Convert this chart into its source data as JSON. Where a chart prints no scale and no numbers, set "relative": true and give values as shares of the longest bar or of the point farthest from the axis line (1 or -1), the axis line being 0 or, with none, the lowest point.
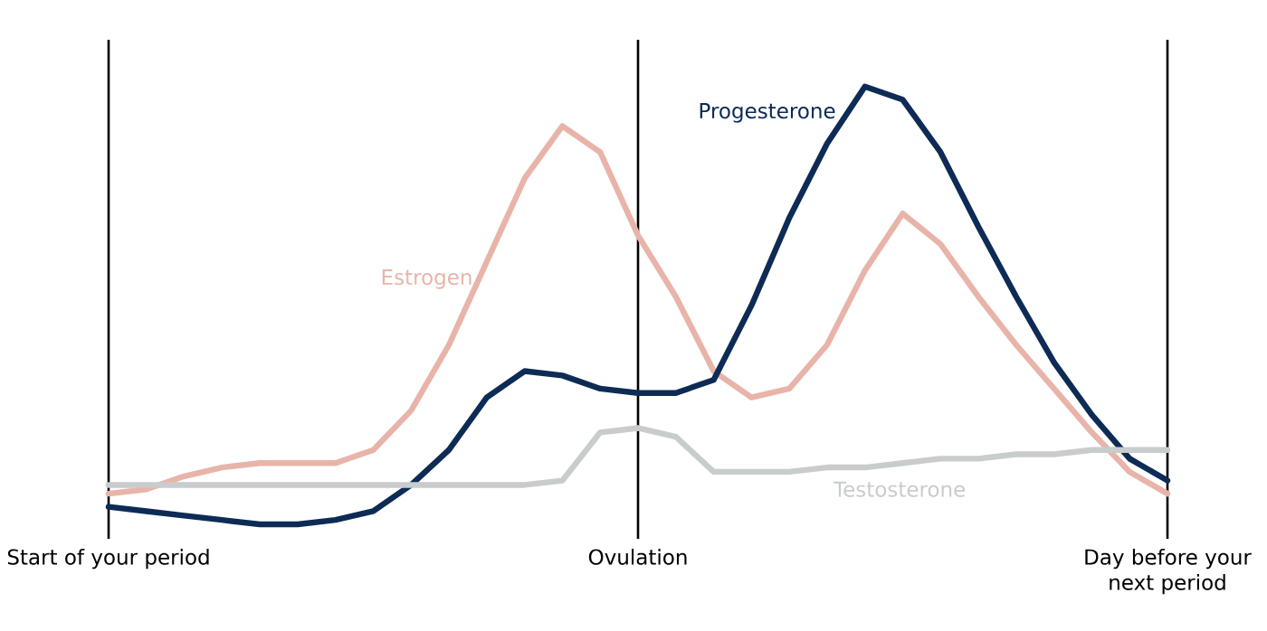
{
  "chart_data": {
    "type": "line",
    "relative": true,
    "categories": [
      "Start of your period",
      null,
      null,
      null,
      null,
      null,
      null,
      null,
      null,
      null,
      null,
      null,
      null,
      null,
      "Ovulation",
      null,
      null,
      null,
      null,
      null,
      null,
      null,
      null,
      null,
      null,
      null,
      null,
      null,
      "Day before your next period"
    ],
    "series": [
      {
        "name": "Estrogen",
        "color": "#e8b4aa",
        "values": [
          0.07,
          0.08,
          0.11,
          0.13,
          0.14,
          0.14,
          0.14,
          0.17,
          0.26,
          0.41,
          0.6,
          0.79,
          0.91,
          0.85,
          0.66,
          0.52,
          0.35,
          0.29,
          0.31,
          0.41,
          0.58,
          0.71,
          0.64,
          0.52,
          0.41,
          0.31,
          0.21,
          0.12,
          0.07
        ]
      },
      {
        "name": "Progesterone",
        "color": "#0d2b55",
        "values": [
          0.04,
          0.03,
          0.02,
          0.01,
          0.0,
          0.0,
          0.01,
          0.03,
          0.09,
          0.17,
          0.29,
          0.35,
          0.34,
          0.31,
          0.3,
          0.3,
          0.33,
          0.5,
          0.7,
          0.87,
          1.0,
          0.97,
          0.85,
          0.68,
          0.52,
          0.37,
          0.25,
          0.15,
          0.1
        ]
      },
      {
        "name": "Testosterone",
        "color": "#c8cccc",
        "values": [
          0.09,
          0.09,
          0.09,
          0.09,
          0.09,
          0.09,
          0.09,
          0.09,
          0.09,
          0.09,
          0.09,
          0.09,
          0.1,
          0.21,
          0.22,
          0.2,
          0.12,
          0.12,
          0.12,
          0.13,
          0.13,
          0.14,
          0.15,
          0.15,
          0.16,
          0.16,
          0.17,
          0.17,
          0.17
        ]
      }
    ],
    "grid": "x"
  }
}
